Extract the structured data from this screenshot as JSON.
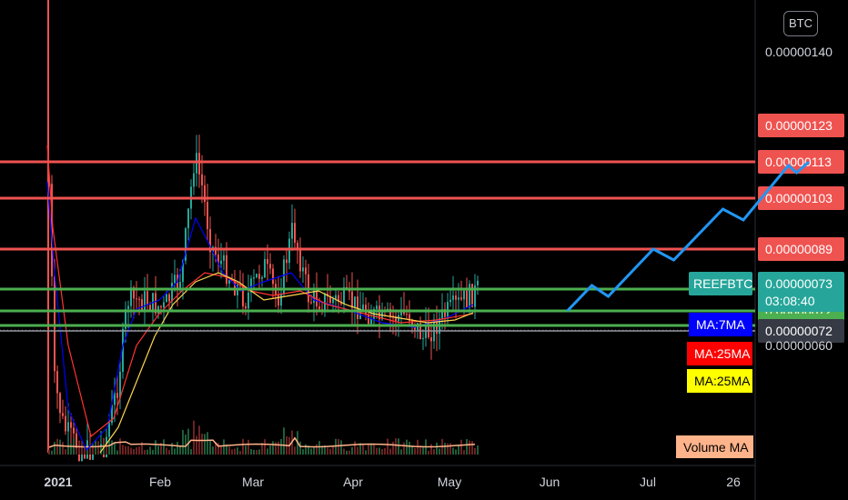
{
  "currency_badge": "BTC",
  "chart_data": {
    "type": "candlestick",
    "symbol": "REEFBTC",
    "countdown": "03:08:40",
    "x_ticks": [
      "2021",
      "Feb",
      "Mar",
      "Apr",
      "May",
      "Jun",
      "Jul",
      "26"
    ],
    "y_ticks": [
      "0.00000140",
      "0.00000060"
    ],
    "price_levels": [
      {
        "label": "0.00000123",
        "value": 1.23,
        "color": "#ef5350"
      },
      {
        "label": "0.00000113",
        "value": 1.13,
        "color": "#ef5350"
      },
      {
        "label": "0.00000103",
        "value": 1.03,
        "color": "#ef5350"
      },
      {
        "label": "0.00000089",
        "value": 0.89,
        "color": "#ef5350"
      },
      {
        "label": "0.00000078",
        "value": 0.78,
        "color": "#4caf50"
      },
      {
        "label": "0.00000072",
        "value": 0.72,
        "color": "#4caf50"
      },
      {
        "label": "0.00000068",
        "value": 0.68,
        "color": "#4caf50"
      }
    ],
    "last_price": {
      "label": "0.00000073",
      "value": 0.73,
      "color": "#26a69a"
    },
    "cursor_price": {
      "label": "0.00000072",
      "value": 0.72
    },
    "ma_legend": [
      {
        "label": "MA:7MA",
        "color": "#0000ff",
        "text_color": "#ffffff"
      },
      {
        "label": "MA:25MA",
        "color": "#ff0000",
        "text_color": "#ffffff"
      },
      {
        "label": "MA:25MA",
        "color": "#ffff00",
        "text_color": "#000000"
      }
    ],
    "volume_ma_label": "Volume MA",
    "projection_path": [
      {
        "date": "2021-05-08",
        "price": 0.72
      },
      {
        "date": "2021-05-14",
        "price": 0.79
      },
      {
        "date": "2021-05-18",
        "price": 0.76
      },
      {
        "date": "2021-05-29",
        "price": 0.89
      },
      {
        "date": "2021-06-03",
        "price": 0.86
      },
      {
        "date": "2021-06-15",
        "price": 1.0
      },
      {
        "date": "2021-06-20",
        "price": 0.97
      },
      {
        "date": "2021-07-01",
        "price": 1.12
      },
      {
        "date": "2021-07-03",
        "price": 1.1
      },
      {
        "date": "2021-07-06",
        "price": 1.13
      }
    ]
  }
}
